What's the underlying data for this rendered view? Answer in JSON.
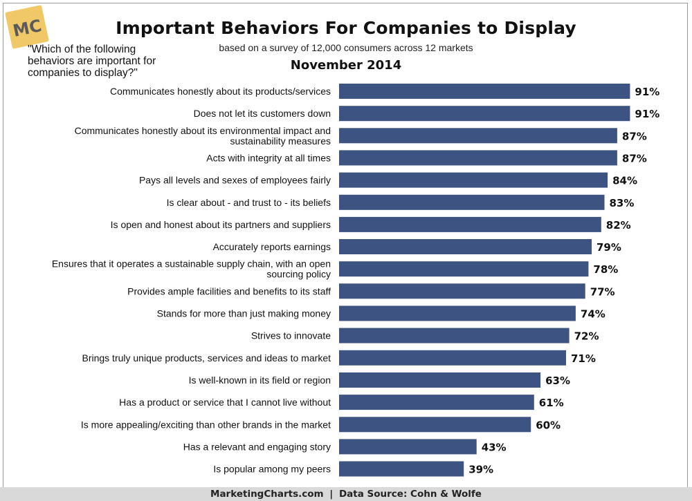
{
  "logo": {
    "text": "MC",
    "bg_color": "#f0c868",
    "text_color": "#5a5a5a"
  },
  "header": {
    "title": "Important Behaviors For Companies to Display",
    "subtitle": "based on a survey of 12,000 consumers across 12 markets",
    "date": "November 2014",
    "question": "\"Which of the following behaviors are important for companies to display?\""
  },
  "footer": {
    "site": "MarketingCharts.com",
    "separator": "|",
    "source": "Data Source: Cohn & Wolfe"
  },
  "chart_data": {
    "type": "bar",
    "orientation": "horizontal",
    "title": "Important Behaviors For Companies to Display",
    "xlabel": "",
    "ylabel": "",
    "xlim": [
      0,
      100
    ],
    "grid": false,
    "bar_color": "#3d5382",
    "value_suffix": "%",
    "categories": [
      "Communicates honestly about its products/services",
      "Does not let its customers down",
      "Communicates honestly about its environmental impact and sustainability measures",
      "Acts with integrity at all times",
      "Pays all levels and sexes of employees fairly",
      "Is clear about - and trust to - its beliefs",
      "Is open and honest about its partners and suppliers",
      "Accurately reports earnings",
      "Ensures that it operates a sustainable supply chain, with an open sourcing policy",
      "Provides ample facilities and benefits to its staff",
      "Stands for more than just making money",
      "Strives to innovate",
      "Brings truly unique products, services and ideas to market",
      "Is well-known in its field or region",
      "Has a product or service that I cannot live without",
      "Is more appealing/exciting than other brands in the market",
      "Has a relevant and engaging story",
      "Is popular among my peers"
    ],
    "category_lines": [
      [
        "Communicates honestly about its products/services"
      ],
      [
        "Does not let its customers down"
      ],
      [
        "Communicates honestly about its environmental impact and",
        "sustainability measures"
      ],
      [
        "Acts with integrity at all times"
      ],
      [
        "Pays all levels and sexes of employees fairly"
      ],
      [
        "Is clear about - and trust to - its beliefs"
      ],
      [
        "Is open and honest about its partners and suppliers"
      ],
      [
        "Accurately reports earnings"
      ],
      [
        "Ensures that it operates a sustainable supply chain, with an open",
        "sourcing policy"
      ],
      [
        "Provides ample facilities and benefits to its staff"
      ],
      [
        "Stands for more than just making money"
      ],
      [
        "Strives to innovate"
      ],
      [
        "Brings truly unique products, services and ideas to market"
      ],
      [
        "Is well-known in its field or region"
      ],
      [
        "Has a product or service that I cannot live without"
      ],
      [
        "Is more appealing/exciting than other brands in the market"
      ],
      [
        "Has a relevant and engaging story"
      ],
      [
        "Is popular among my peers"
      ]
    ],
    "values": [
      91,
      91,
      87,
      87,
      84,
      83,
      82,
      79,
      78,
      77,
      74,
      72,
      71,
      63,
      61,
      60,
      43,
      39
    ]
  }
}
